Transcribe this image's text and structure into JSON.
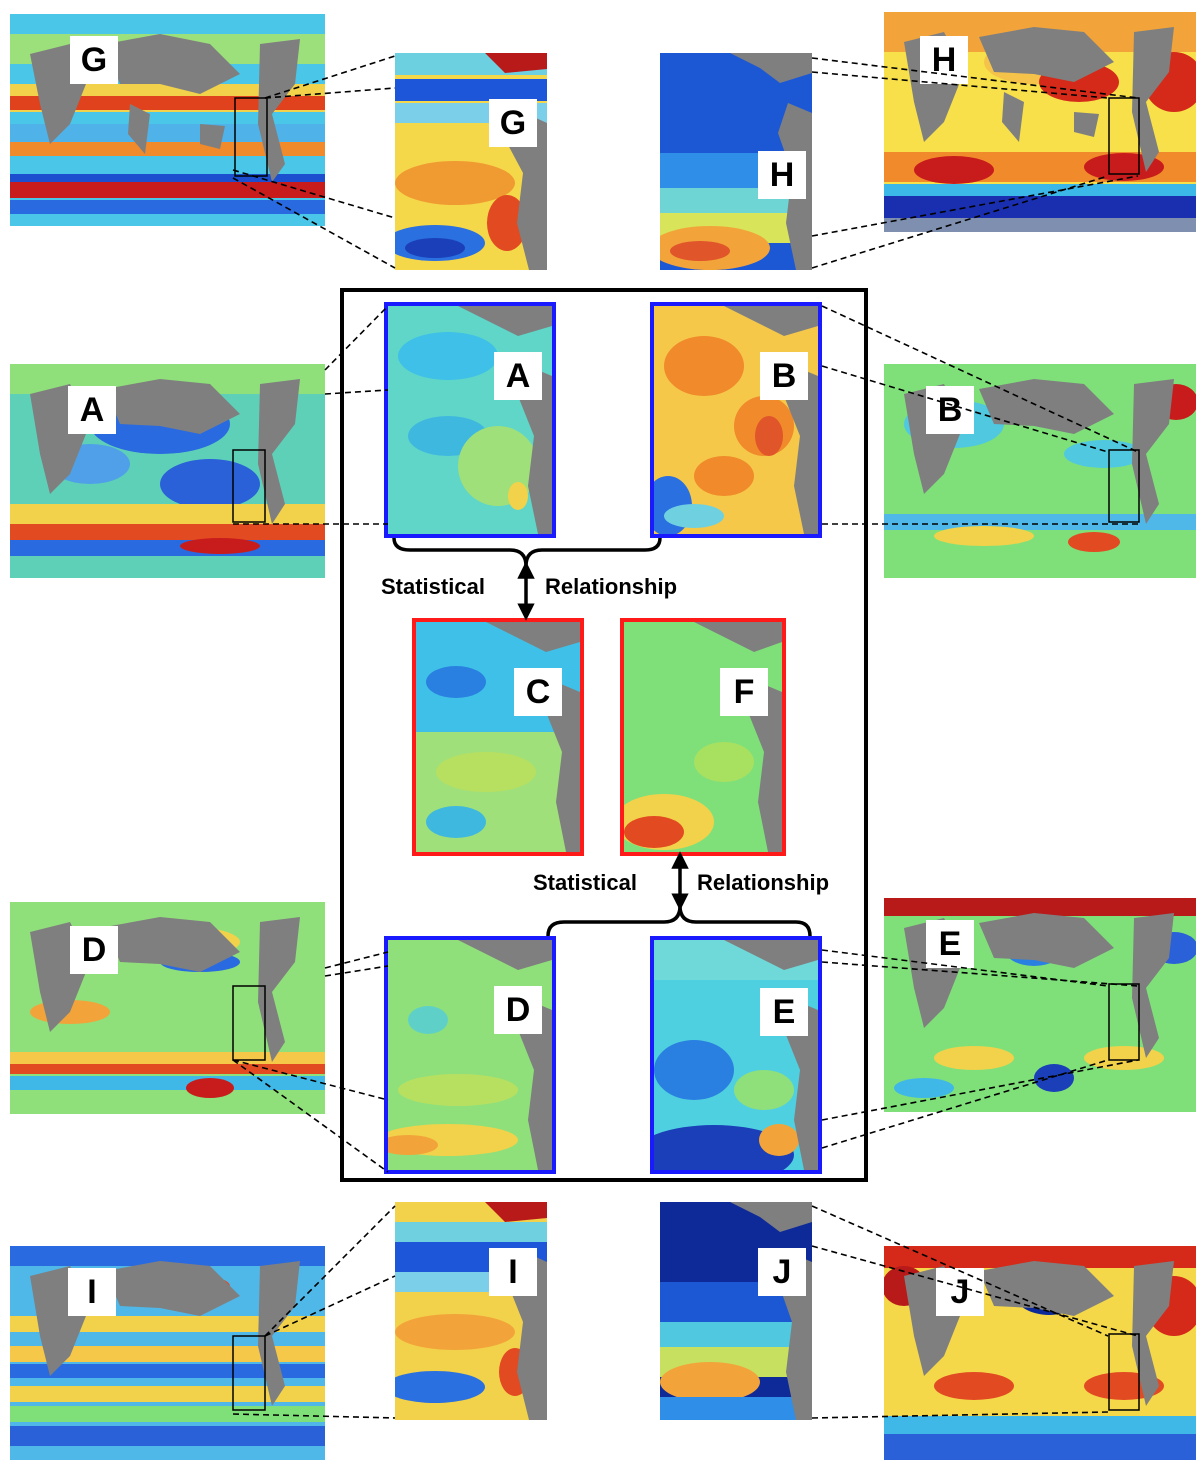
{
  "panels": {
    "G_world": "G",
    "G_zoom": "G",
    "H_zoom": "H",
    "H_world": "H",
    "A_world": "A",
    "A_zoom": "A",
    "B_zoom": "B",
    "B_world": "B",
    "C_zoom": "C",
    "F_zoom": "F",
    "D_world": "D",
    "D_zoom": "D",
    "E_zoom": "E",
    "E_world": "E",
    "I_world": "I",
    "I_zoom": "I",
    "J_zoom": "J",
    "J_world": "J"
  },
  "relationships": {
    "top": {
      "left": "Statistical",
      "right": "Relationship"
    },
    "bottom": {
      "left": "Statistical",
      "right": "Relationship"
    }
  },
  "colors": {
    "predictor_frame": "#1a1aff",
    "target_frame": "#ff1a1a",
    "land": "#7f7f7f",
    "ocean_mid": "#7fe07f"
  }
}
